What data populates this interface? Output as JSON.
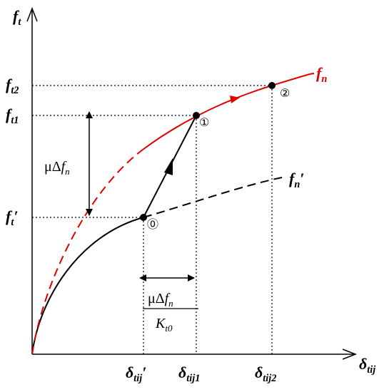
{
  "axes": {
    "y": {
      "base": "f",
      "sub": "t"
    },
    "x": {
      "base": "δ",
      "sub": "tij"
    }
  },
  "y_labels": [
    {
      "base": "f",
      "sub": "t2"
    },
    {
      "base": "f",
      "sub": "t1"
    },
    {
      "base": "f",
      "sub": "t",
      "suffix": "′"
    }
  ],
  "x_labels": [
    {
      "base": "δ",
      "sub": "tij",
      "suffix": "′"
    },
    {
      "base": "δ",
      "sub": "tij1"
    },
    {
      "base": "δ",
      "sub": "tij2"
    }
  ],
  "curve_labels": [
    {
      "base": "f",
      "sub": "n"
    },
    {
      "base": "f",
      "sub": "n",
      "suffix": "′"
    }
  ],
  "point_labels": [
    "⓪",
    "①",
    "②"
  ],
  "increment_label": {
    "prefix": "μΔ",
    "base": "f",
    "sub": "n"
  },
  "fraction": {
    "numerator": {
      "prefix": "μΔ",
      "base": "f",
      "sub": "n"
    },
    "denominator": {
      "base": "K",
      "sub": "t0"
    }
  }
}
